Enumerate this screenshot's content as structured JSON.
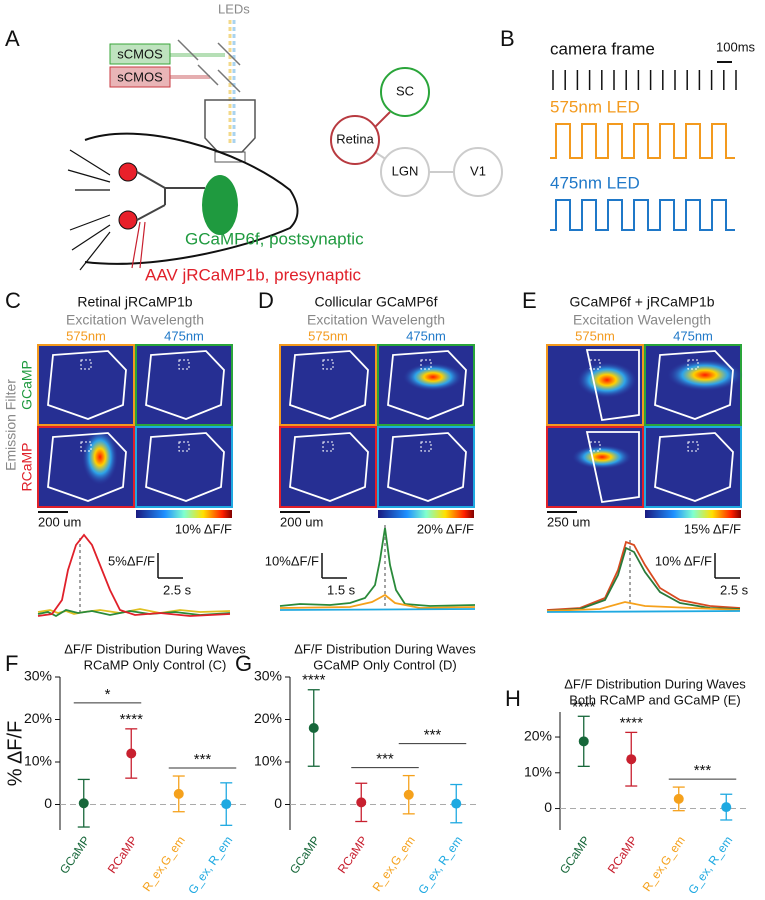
{
  "panel_labels": [
    "A",
    "B",
    "C",
    "D",
    "E"
  ],
  "schematic": {
    "leds": "LEDs",
    "cameras": [
      "sCMOS",
      "sCMOS"
    ],
    "postsynaptic": "GCaMP6f, postsynaptic",
    "presynaptic": "AAV jRCaMP1b, presynaptic",
    "nodes": [
      "SC",
      "Retina",
      "LGN",
      "V1"
    ]
  },
  "timing": {
    "camera": "camera frame",
    "scale": "100ms",
    "led1": "575nm LED",
    "led2": "475nm LED"
  },
  "emission": {
    "title": "Emission Filter",
    "rows": [
      "GCaMP",
      "RCaMP"
    ]
  },
  "imaging": [
    {
      "title": "Retinal jRCaMP1b",
      "subtitle": "Excitation Wavelength",
      "excitation": [
        "575nm",
        "475nm"
      ],
      "scale_bar": "200 um",
      "colorbar": "10% ΔF/F",
      "trace_y": "5%ΔF/F",
      "trace_x": "2.5 s"
    },
    {
      "title": "Collicular GCaMP6f",
      "subtitle": "Excitation Wavelength",
      "excitation": [
        "575nm",
        "475nm"
      ],
      "scale_bar": "200 um",
      "colorbar": "20% ΔF/F",
      "trace_y": "10%ΔF/F",
      "trace_x": "1.5 s"
    },
    {
      "title": "GCaMP6f + jRCaMP1b",
      "subtitle": "Excitation Wavelength",
      "excitation": [
        "575nm",
        "475nm"
      ],
      "scale_bar": "250 um",
      "colorbar": "15% ΔF/F",
      "trace_y": "10% ΔF/F",
      "trace_x": "2.5 s"
    }
  ],
  "chart_data": [
    {
      "type": "errorbar",
      "label": "F",
      "title": "ΔF/F Distribution During Waves",
      "subtitle": "RCaMP Only Control (C)",
      "ylabel": "% ΔF/F",
      "categories": [
        "GCaMP",
        "RCaMP",
        "R_ex,G_em",
        "G_ex, R_em"
      ],
      "colors": [
        "#17673a",
        "#c8202f",
        "#f5a11c",
        "#1fa9e1"
      ],
      "values": [
        0.3,
        12,
        2.5,
        0.1
      ],
      "errors": [
        5.6,
        5.8,
        4.2,
        5
      ],
      "ylim": [
        -6,
        30
      ],
      "yticks": [
        0,
        {
          "value": 10,
          "label": "10%"
        },
        {
          "value": 20,
          "label": "20%"
        },
        {
          "value": 30,
          "label": "30%"
        }
      ],
      "zero_line": true,
      "annotations": [
        {
          "text": "****",
          "from": "RCaMP",
          "to": "RCaMP"
        },
        {
          "text": "*",
          "from": "GCaMP",
          "to": "RCaMP"
        },
        {
          "text": "***",
          "from": "R_ex,G_em",
          "to": "G_ex, R_em"
        }
      ]
    },
    {
      "type": "errorbar",
      "label": "G",
      "title": "ΔF/F Distribution During Waves",
      "subtitle": "GCaMP Only Control (D)",
      "categories": [
        "GCaMP",
        "RCaMP",
        "R_ex,G_em",
        "G_ex, R_em"
      ],
      "colors": [
        "#17673a",
        "#c8202f",
        "#f5a11c",
        "#1fa9e1"
      ],
      "values": [
        18,
        0.5,
        2.3,
        0.2
      ],
      "errors": [
        9,
        4.5,
        4.5,
        4.5
      ],
      "ylim": [
        -6,
        30
      ],
      "yticks": [
        0,
        {
          "value": 10,
          "label": "10%"
        },
        {
          "value": 20,
          "label": "20%"
        },
        {
          "value": 30,
          "label": "30%"
        }
      ],
      "zero_line": true,
      "annotations": [
        {
          "text": "****",
          "from": "GCaMP",
          "to": "GCaMP"
        },
        {
          "text": "***",
          "from": "RCaMP",
          "to": "R_ex,G_em"
        },
        {
          "text": "***",
          "from": "R_ex,G_em",
          "to": "G_ex, R_em"
        }
      ]
    },
    {
      "type": "errorbar",
      "label": "H",
      "title": "ΔF/F Distribution During Waves",
      "subtitle": "Both RCaMP and GCaMP (E)",
      "categories": [
        "GCaMP",
        "RCaMP",
        "R_ex,G_em",
        "G_ex, R_em"
      ],
      "colors": [
        "#17673a",
        "#c8202f",
        "#f5a11c",
        "#1fa9e1"
      ],
      "values": [
        18.8,
        13.8,
        2.7,
        0.4
      ],
      "errors": [
        7,
        7.5,
        3.3,
        3.6
      ],
      "ylim": [
        -6,
        27
      ],
      "yticks": [
        0,
        {
          "value": 10,
          "label": "10%"
        },
        {
          "value": 20,
          "label": "20%"
        }
      ],
      "zero_line": true,
      "annotations": [
        {
          "text": "****",
          "from": "GCaMP",
          "to": "GCaMP"
        },
        {
          "text": "****",
          "from": "RCaMP",
          "to": "RCaMP"
        },
        {
          "text": "***",
          "from": "R_ex,G_em",
          "to": "G_ex, R_em"
        }
      ]
    }
  ]
}
